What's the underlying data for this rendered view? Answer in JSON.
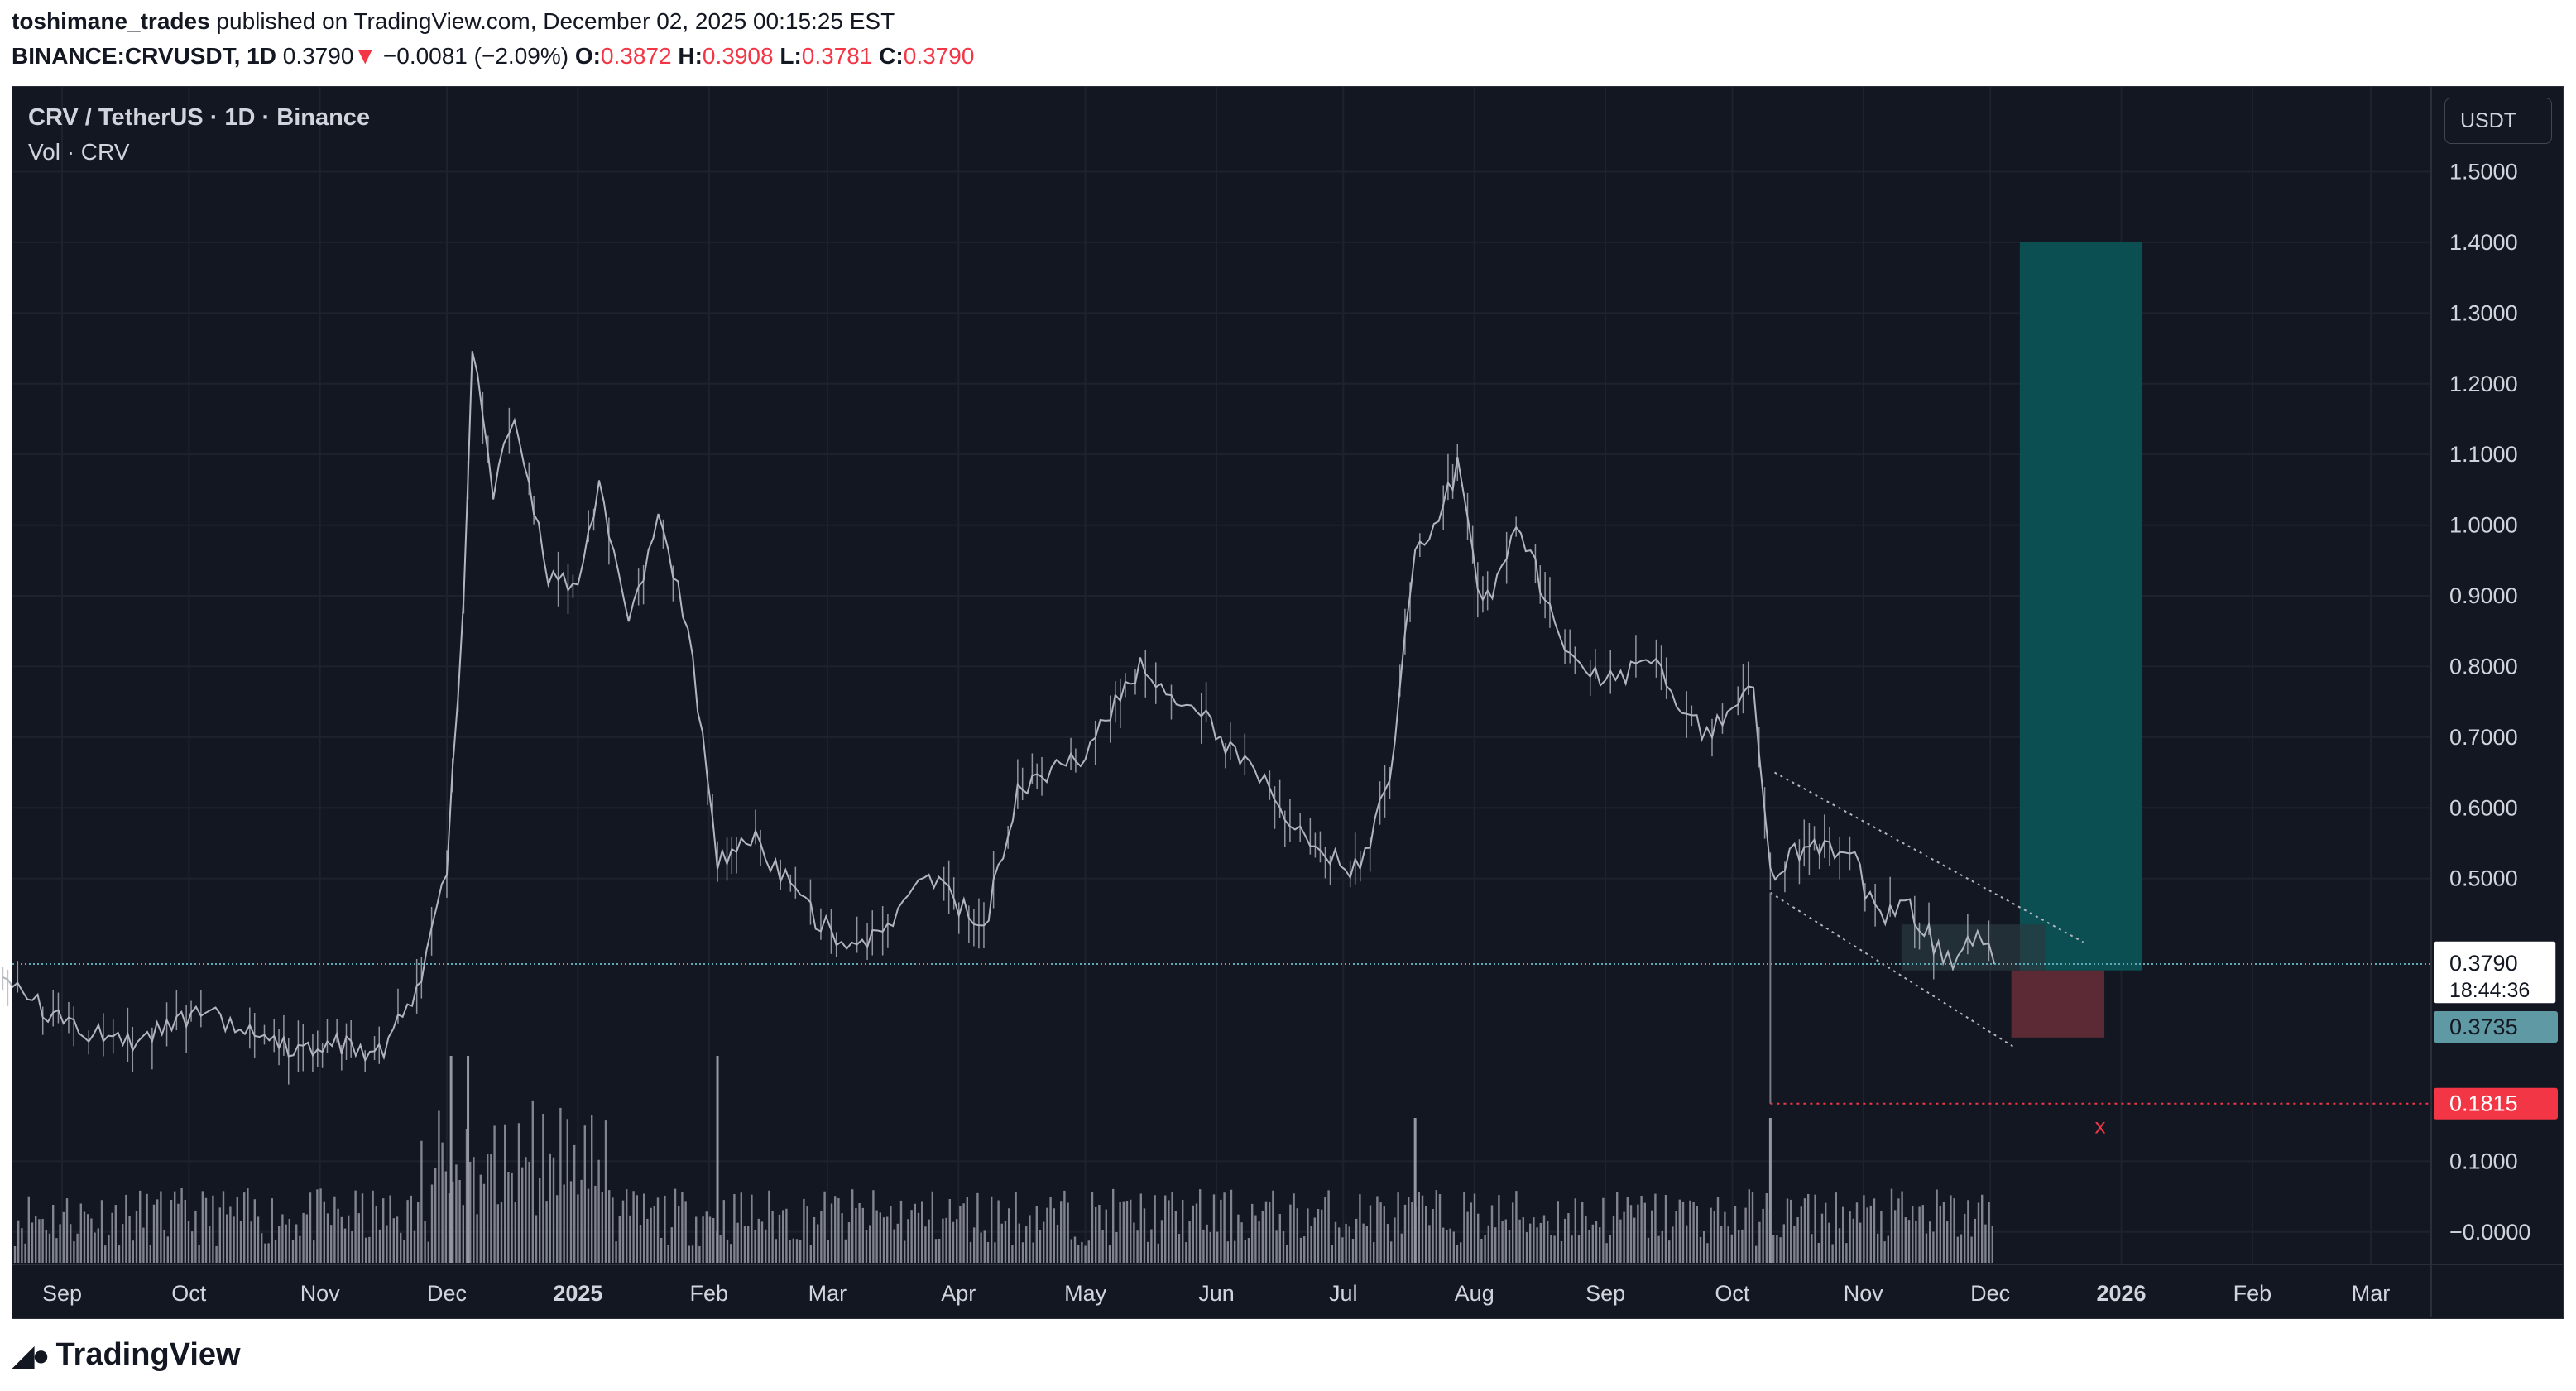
{
  "header": {
    "author": "toshimane_trades",
    "published_text": "published on TradingView.com, December 02, 2025 00:15:25 EST",
    "symbol": "BINANCE:CRVUSDT, 1D",
    "last": "0.3790",
    "down_marker": "▼",
    "change": "−0.0081 (−2.09%)",
    "o_label": "O:",
    "o_val": "0.3872",
    "h_label": "H:",
    "h_val": "0.3908",
    "l_label": "L:",
    "l_val": "0.3781",
    "c_label": "C:",
    "c_val": "0.3790"
  },
  "legend": {
    "title": "CRV / TetherUS · 1D · Binance",
    "volume": "Vol · CRV"
  },
  "currency_button": "USDT",
  "footer": {
    "logo_text": "TradingView"
  },
  "colors": {
    "background": "#131722",
    "grid": "#1e222d",
    "candle": "#b2b5be",
    "target_zone": "#0b4f52",
    "stop_zone": "#5b2a35",
    "entry_zone": "#2a3a40",
    "price_line": "#5fa8b5",
    "stop_label": "#f23645",
    "entry_label": "#5f99a3"
  },
  "chart_data": {
    "type": "line",
    "symbol": "CRV / TetherUS",
    "interval": "1D",
    "exchange": "Binance",
    "x_ticks": [
      "Sep",
      "Oct",
      "Nov",
      "Dec",
      "2025",
      "Feb",
      "Mar",
      "Apr",
      "May",
      "Jun",
      "Jul",
      "Aug",
      "Sep",
      "Oct",
      "Nov",
      "Dec",
      "2026",
      "Feb",
      "Mar"
    ],
    "y_ticks": [
      "1.5000",
      "1.4000",
      "1.3000",
      "1.2000",
      "1.1000",
      "1.0000",
      "0.9000",
      "0.8000",
      "0.7000",
      "0.6000",
      "0.5000",
      "0.1000",
      "−0.0000"
    ],
    "ylim": [
      -0.06,
      1.62
    ],
    "price_path": [
      {
        "x": "2024-08-18",
        "y": 0.36
      },
      {
        "x": "2024-08-25",
        "y": 0.33
      },
      {
        "x": "2024-09-05",
        "y": 0.28
      },
      {
        "x": "2024-09-20",
        "y": 0.27
      },
      {
        "x": "2024-10-05",
        "y": 0.31
      },
      {
        "x": "2024-10-20",
        "y": 0.26
      },
      {
        "x": "2024-11-05",
        "y": 0.27
      },
      {
        "x": "2024-11-15",
        "y": 0.25
      },
      {
        "x": "2024-11-25",
        "y": 0.35
      },
      {
        "x": "2024-12-01",
        "y": 0.52
      },
      {
        "x": "2024-12-05",
        "y": 0.9
      },
      {
        "x": "2024-12-07",
        "y": 1.25
      },
      {
        "x": "2024-12-12",
        "y": 1.05
      },
      {
        "x": "2024-12-17",
        "y": 1.15
      },
      {
        "x": "2024-12-25",
        "y": 0.92
      },
      {
        "x": "2025-01-01",
        "y": 0.92
      },
      {
        "x": "2025-01-06",
        "y": 1.05
      },
      {
        "x": "2025-01-13",
        "y": 0.85
      },
      {
        "x": "2025-01-20",
        "y": 1.02
      },
      {
        "x": "2025-01-27",
        "y": 0.85
      },
      {
        "x": "2025-02-03",
        "y": 0.53
      },
      {
        "x": "2025-02-12",
        "y": 0.55
      },
      {
        "x": "2025-02-25",
        "y": 0.45
      },
      {
        "x": "2025-03-08",
        "y": 0.4
      },
      {
        "x": "2025-03-25",
        "y": 0.5
      },
      {
        "x": "2025-04-07",
        "y": 0.43
      },
      {
        "x": "2025-04-15",
        "y": 0.62
      },
      {
        "x": "2025-05-01",
        "y": 0.68
      },
      {
        "x": "2025-05-14",
        "y": 0.8
      },
      {
        "x": "2025-05-25",
        "y": 0.75
      },
      {
        "x": "2025-06-10",
        "y": 0.65
      },
      {
        "x": "2025-06-22",
        "y": 0.55
      },
      {
        "x": "2025-07-05",
        "y": 0.51
      },
      {
        "x": "2025-07-12",
        "y": 0.65
      },
      {
        "x": "2025-07-18",
        "y": 0.95
      },
      {
        "x": "2025-07-28",
        "y": 1.08
      },
      {
        "x": "2025-08-03",
        "y": 0.88
      },
      {
        "x": "2025-08-12",
        "y": 1.0
      },
      {
        "x": "2025-08-20",
        "y": 0.85
      },
      {
        "x": "2025-09-01",
        "y": 0.78
      },
      {
        "x": "2025-09-13",
        "y": 0.8
      },
      {
        "x": "2025-09-25",
        "y": 0.7
      },
      {
        "x": "2025-10-06",
        "y": 0.78
      },
      {
        "x": "2025-10-10",
        "y": 0.5
      },
      {
        "x": "2025-10-18",
        "y": 0.55
      },
      {
        "x": "2025-10-30",
        "y": 0.52
      },
      {
        "x": "2025-11-05",
        "y": 0.44
      },
      {
        "x": "2025-11-12",
        "y": 0.46
      },
      {
        "x": "2025-11-21",
        "y": 0.38
      },
      {
        "x": "2025-11-28",
        "y": 0.42
      },
      {
        "x": "2025-12-02",
        "y": 0.379
      }
    ],
    "current_price": "0.3790",
    "countdown": "18:44:36",
    "entry_price": "0.3735",
    "stop_price": "0.1815",
    "target_top": 1.4,
    "stop_zone": [
      0.275,
      0.37
    ],
    "entry_zone": [
      0.37,
      0.435
    ],
    "long_position": {
      "x_start": "2025-12-08",
      "x_end": "2026-01-06"
    },
    "channel_upper": [
      {
        "x": "2025-10-11",
        "y": 0.65
      },
      {
        "x": "2025-12-23",
        "y": 0.41
      }
    ],
    "channel_lower": [
      {
        "x": "2025-10-10",
        "y": 0.48
      },
      {
        "x": "2025-12-07",
        "y": 0.26
      }
    ],
    "stop_marker": "x"
  }
}
